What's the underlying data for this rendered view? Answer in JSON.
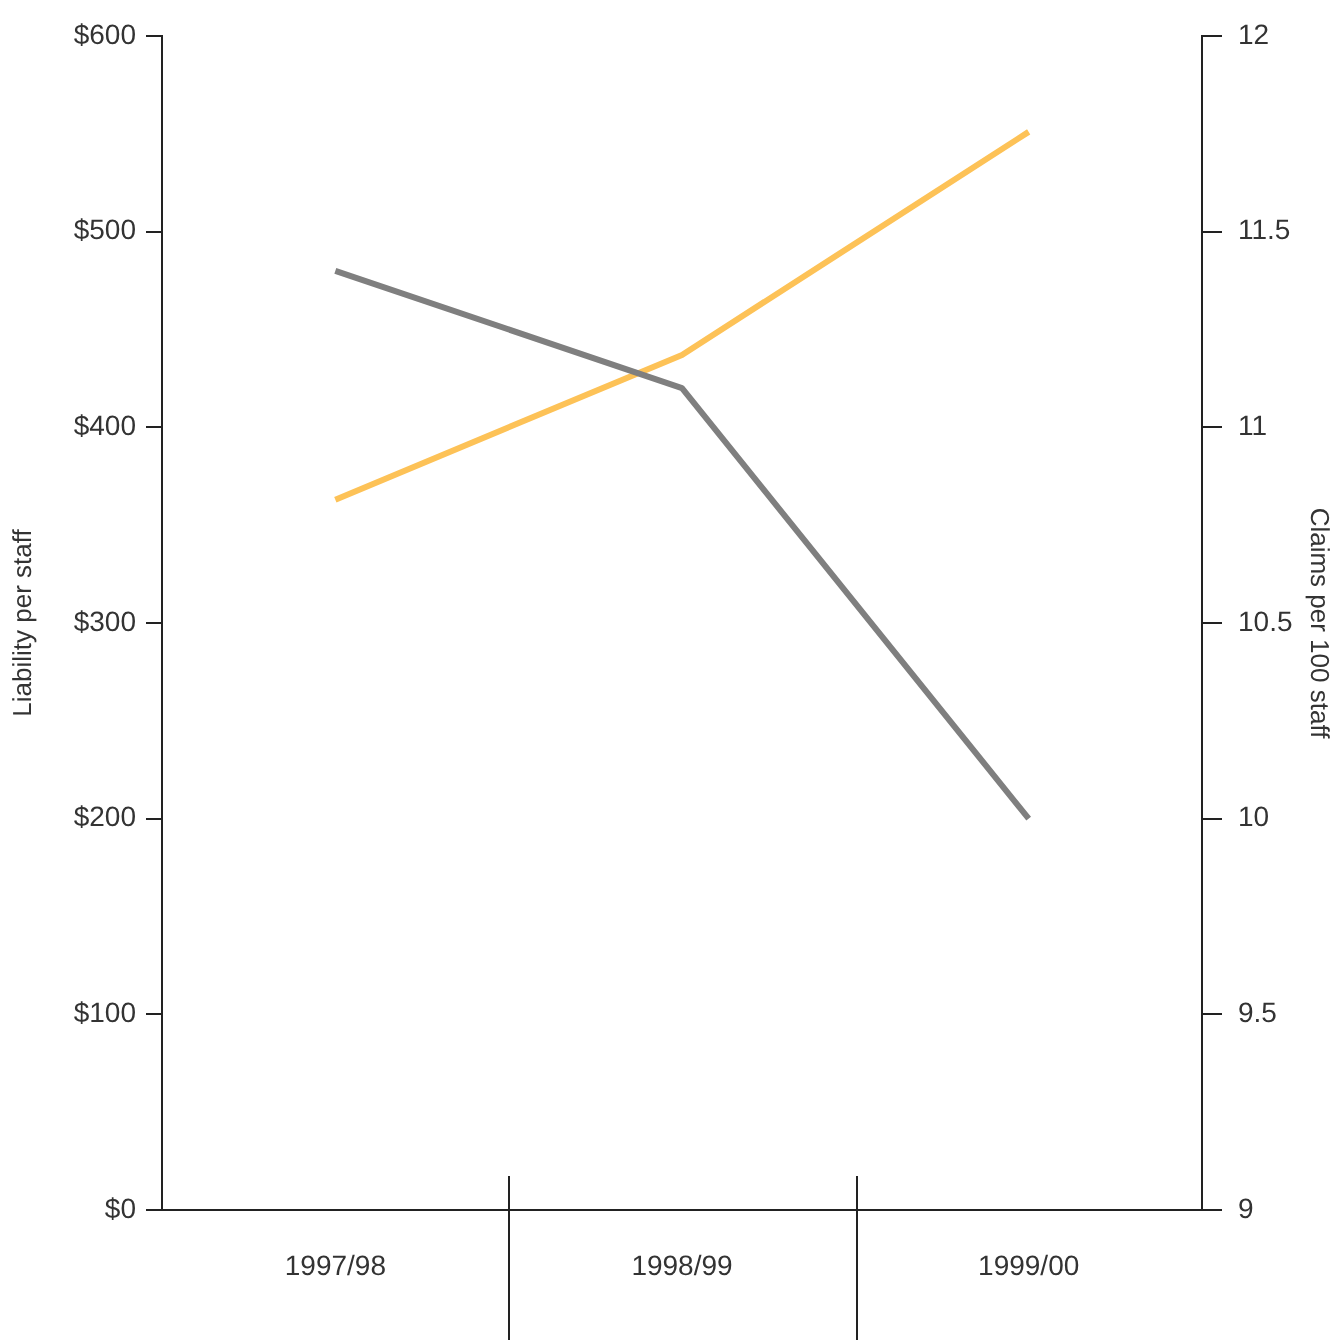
{
  "chart_data": {
    "type": "line",
    "categories": [
      "1997/98",
      "1998/99",
      "1999/00"
    ],
    "ylabel": "Liability per staff",
    "y2label": "Claims per 100 staff",
    "ylim": [
      0,
      600
    ],
    "yticks": [
      {
        "value": 0,
        "label": "$0"
      },
      {
        "value": 100,
        "label": "$100"
      },
      {
        "value": 200,
        "label": "$200"
      },
      {
        "value": 300,
        "label": "$300"
      },
      {
        "value": 400,
        "label": "$400"
      },
      {
        "value": 500,
        "label": "$500"
      },
      {
        "value": 600,
        "label": "$600"
      }
    ],
    "y2lim": [
      9,
      12
    ],
    "y2ticks": [
      9,
      9.5,
      10,
      10.5,
      11,
      11.5,
      12
    ],
    "series": [
      {
        "color": "#7f7f7f",
        "axis": "y2",
        "values": [
          11.4,
          11.1,
          10
        ]
      },
      {
        "color": "#fdc257",
        "values": [
          363,
          437,
          551
        ]
      }
    ],
    "grid": false,
    "legend": false,
    "marker": "none",
    "line_style": "solid"
  }
}
